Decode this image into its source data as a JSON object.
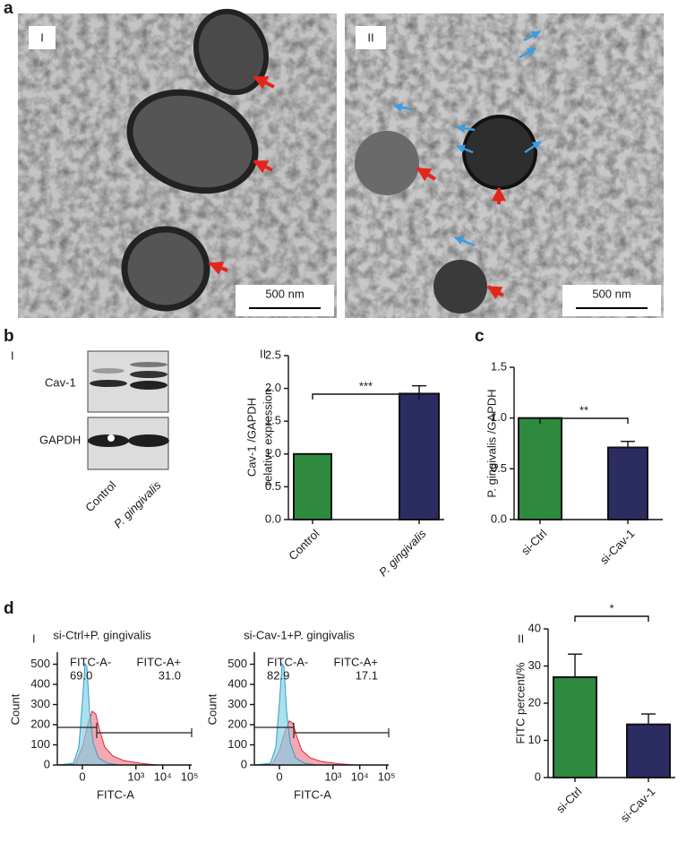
{
  "panel_letters": [
    "a",
    "b",
    "c",
    "d"
  ],
  "micrographs": [
    {
      "label": "I",
      "scale_bar": "500 nm"
    },
    {
      "label": "II",
      "scale_bar": "500 nm"
    }
  ],
  "western_blot": {
    "label": "I",
    "bands": [
      "Cav-1",
      "GAPDH"
    ],
    "lanes": [
      "Control",
      "P. gingivalis"
    ]
  },
  "flow_label": "I",
  "chart_data": [
    {
      "type": "bar",
      "label": "II",
      "ylabel": [
        "Cav-1 /GAPDH",
        "relative expression"
      ],
      "categories": [
        "Control",
        "P. gingivalis"
      ],
      "values": [
        1.0,
        1.92
      ],
      "errors": [
        null,
        0.12
      ],
      "colors": [
        "#2e8a3e",
        "#2b2c62"
      ],
      "significance": "***",
      "ylim": [
        0,
        2.5
      ],
      "yticks": [
        {
          "value": 0,
          "label": "0.0"
        },
        {
          "value": 0.5,
          "label": "0.5"
        },
        {
          "value": 1,
          "label": "1.0"
        },
        {
          "value": 1.5,
          "label": "1.5"
        },
        {
          "value": 2,
          "label": "2.0"
        },
        {
          "value": 2.5,
          "label": "2.5"
        }
      ]
    },
    {
      "type": "bar",
      "ylabel": [
        "P. gingivalis /GAPDH"
      ],
      "categories": [
        "si-Ctrl",
        "si-Cav-1"
      ],
      "values": [
        1.0,
        0.71
      ],
      "errors": [
        null,
        0.06
      ],
      "colors": [
        "#2e8a3e",
        "#2b2c62"
      ],
      "significance": "**",
      "ylim": [
        0,
        1.5
      ],
      "yticks": [
        {
          "value": 0,
          "label": "0.0"
        },
        {
          "value": 0.5,
          "label": "0.5"
        },
        {
          "value": 1,
          "label": "1.0"
        },
        {
          "value": 1.5,
          "label": "1.5"
        }
      ]
    },
    {
      "type": "flow",
      "title": "si-Ctrl+P. gingivalis",
      "gates": [
        "FITC-A-",
        "FITC-A+"
      ],
      "gate_percent": [
        "69.0",
        "31.0"
      ],
      "xlabel": "FITC-A",
      "ylabel": "Count",
      "xlim": [
        -85,
        120000
      ],
      "ylim": [
        0,
        560
      ],
      "xticks": [
        0,
        {
          "value": 1000,
          "label": "10³"
        },
        {
          "value": 10000,
          "label": "10⁴"
        },
        {
          "value": 100000,
          "label": "10⁵"
        }
      ],
      "yticks": [
        0,
        100,
        200,
        300,
        400,
        500
      ]
    },
    {
      "type": "flow",
      "title": "si-Cav-1+P. gingivalis",
      "gates": [
        "FITC-A-",
        "FITC-A+"
      ],
      "gate_percent": [
        "82.9",
        "17.1"
      ],
      "xlabel": "FITC-A",
      "ylabel": "Count",
      "xlim": [
        -85,
        120000
      ],
      "ylim": [
        0,
        560
      ],
      "xticks": [
        0,
        {
          "value": 1000,
          "label": "10³"
        },
        {
          "value": 10000,
          "label": "10⁴"
        },
        {
          "value": 100000,
          "label": "10⁵"
        }
      ],
      "yticks": [
        0,
        100,
        200,
        300,
        400,
        500
      ]
    },
    {
      "type": "bar",
      "label": "II",
      "ylabel": [
        "FITC percent/%"
      ],
      "categories": [
        "si-Ctrl",
        "si-Cav-1"
      ],
      "values": [
        27,
        14.3
      ],
      "errors": [
        6.2,
        2.8
      ],
      "colors": [
        "#2e8a3e",
        "#2b2c62"
      ],
      "significance": "*",
      "ylim": [
        0,
        40
      ],
      "yticks": [
        0,
        10,
        20,
        30,
        40
      ]
    }
  ]
}
